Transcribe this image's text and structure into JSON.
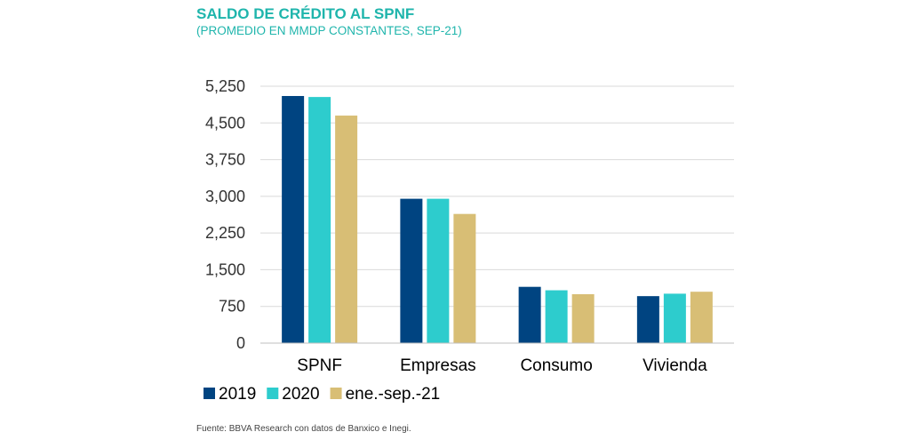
{
  "header": {
    "title": "SALDO DE CRÉDITO AL SPNF",
    "subtitle": "(PROMEDIO EN MMDP CONSTANTES, SEP-21)"
  },
  "footer": {
    "source": "Fuente: BBVA Research con datos de Banxico e Inegi."
  },
  "chart_data": {
    "type": "bar",
    "title": "SALDO DE CRÉDITO AL SPNF",
    "subtitle": "(PROMEDIO EN MMDP CONSTANTES, SEP-21)",
    "categories": [
      "SPNF",
      "Empresas",
      "Consumo",
      "Vivienda"
    ],
    "series": [
      {
        "name": "2019",
        "color": "#004481",
        "values": [
          5050,
          2950,
          1150,
          960
        ]
      },
      {
        "name": "2020",
        "color": "#2dcccd",
        "values": [
          5030,
          2950,
          1080,
          1010
        ]
      },
      {
        "name": "ene.-sep.-21",
        "color": "#d8be75",
        "values": [
          4650,
          2640,
          1000,
          1050
        ]
      }
    ],
    "ylim": [
      0,
      5250
    ],
    "yticks": [
      "0",
      "750",
      "1,500",
      "2,250",
      "3,000",
      "3,750",
      "4,500",
      "5,250"
    ],
    "ytick_values": [
      0,
      750,
      1500,
      2250,
      3000,
      3750,
      4500,
      5250
    ],
    "grid": true,
    "legend_position": "bottom-left",
    "xlabel": "",
    "ylabel": ""
  }
}
